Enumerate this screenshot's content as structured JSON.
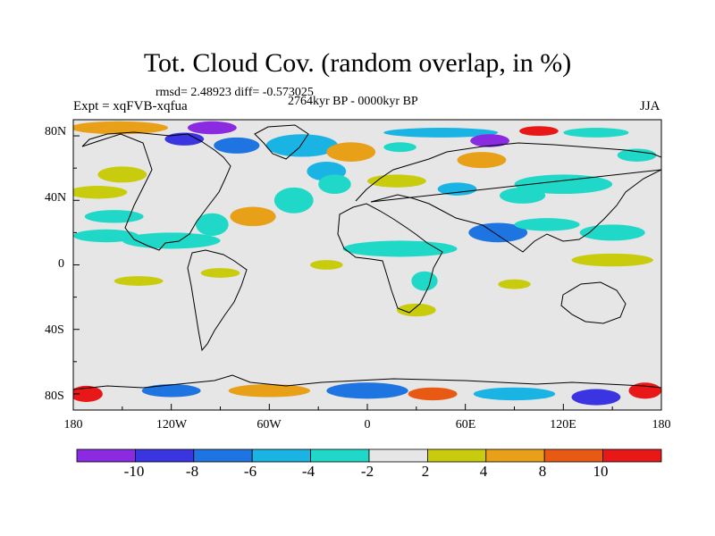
{
  "header": {
    "title": "Tot. Cloud Cov. (random overlap, in %)",
    "stats": "rmsd= 2.48923 diff= -0.573025",
    "period": "2764kyr BP - 0000kyr BP",
    "experiment": "Expt = xqFVB-xqfua",
    "season": "JJA"
  },
  "map": {
    "projection": "cylindrical-equidistant",
    "lon_range": [
      -180,
      180
    ],
    "lat_range": [
      -90,
      90
    ],
    "ocean_land_fill": "#e6e6e6",
    "coastline_color": "#000000",
    "y_ticks": [
      "80N",
      "40N",
      "0",
      "40S",
      "80S"
    ],
    "x_ticks": [
      "180",
      "120W",
      "60W",
      "0",
      "60E",
      "120E",
      "180"
    ]
  },
  "colorbar": {
    "labels": [
      "-10",
      "-8",
      "-6",
      "-4",
      "-2",
      "2",
      "4",
      "8",
      "10"
    ],
    "colors": [
      "#8a2be2",
      "#3a35e0",
      "#1e74e0",
      "#19b4e4",
      "#20d8c8",
      "#e6e6e6",
      "#c8cc0c",
      "#e8a018",
      "#e85a14",
      "#e81818"
    ]
  },
  "anomaly_blobs": [
    {
      "lon": -152,
      "lat": 85,
      "rlon": 30,
      "rlat": 4,
      "level": "pos4"
    },
    {
      "lon": -95,
      "lat": 85,
      "rlon": 15,
      "rlat": 4,
      "level": "neg10"
    },
    {
      "lon": -112,
      "lat": 78,
      "rlon": 12,
      "rlat": 4,
      "level": "neg8"
    },
    {
      "lon": -80,
      "lat": 74,
      "rlon": 14,
      "rlat": 5,
      "level": "neg6"
    },
    {
      "lon": -40,
      "lat": 74,
      "rlon": 22,
      "rlat": 7,
      "level": "neg4"
    },
    {
      "lon": -25,
      "lat": 58,
      "rlon": 12,
      "rlat": 6,
      "level": "neg4"
    },
    {
      "lon": 20,
      "lat": 73,
      "rlon": 10,
      "rlat": 3,
      "level": "neg2"
    },
    {
      "lon": 45,
      "lat": 82,
      "rlon": 35,
      "rlat": 3,
      "level": "neg4"
    },
    {
      "lon": 75,
      "lat": 77,
      "rlon": 12,
      "rlat": 4,
      "level": "neg10"
    },
    {
      "lon": 105,
      "lat": 83,
      "rlon": 12,
      "rlat": 3,
      "level": "pos10"
    },
    {
      "lon": 140,
      "lat": 82,
      "rlon": 20,
      "rlat": 3,
      "level": "neg2"
    },
    {
      "lon": 165,
      "lat": 68,
      "rlon": 12,
      "rlat": 4,
      "level": "neg2"
    },
    {
      "lon": -10,
      "lat": 70,
      "rlon": 15,
      "rlat": 6,
      "level": "pos4"
    },
    {
      "lon": 70,
      "lat": 65,
      "rlon": 15,
      "rlat": 5,
      "level": "pos4"
    },
    {
      "lon": 18,
      "lat": 52,
      "rlon": 18,
      "rlat": 4,
      "level": "pos2"
    },
    {
      "lon": 55,
      "lat": 47,
      "rlon": 12,
      "rlat": 4,
      "level": "neg4"
    },
    {
      "lon": 120,
      "lat": 50,
      "rlon": 30,
      "rlat": 6,
      "level": "neg2"
    },
    {
      "lon": 95,
      "lat": 43,
      "rlon": 14,
      "rlat": 5,
      "level": "neg2"
    },
    {
      "lon": -165,
      "lat": 45,
      "rlon": 18,
      "rlat": 4,
      "level": "pos2"
    },
    {
      "lon": -150,
      "lat": 56,
      "rlon": 15,
      "rlat": 5,
      "level": "pos2"
    },
    {
      "lon": -45,
      "lat": 40,
      "rlon": 12,
      "rlat": 8,
      "level": "neg2"
    },
    {
      "lon": -20,
      "lat": 50,
      "rlon": 10,
      "rlat": 6,
      "level": "neg2"
    },
    {
      "lon": -70,
      "lat": 30,
      "rlon": 14,
      "rlat": 6,
      "level": "pos4"
    },
    {
      "lon": -95,
      "lat": 25,
      "rlon": 10,
      "rlat": 7,
      "level": "neg2"
    },
    {
      "lon": -155,
      "lat": 30,
      "rlon": 18,
      "rlat": 4,
      "level": "neg2"
    },
    {
      "lon": -160,
      "lat": 18,
      "rlon": 20,
      "rlat": 4,
      "level": "neg2"
    },
    {
      "lon": -120,
      "lat": 15,
      "rlon": 30,
      "rlat": 5,
      "level": "neg2"
    },
    {
      "lon": 20,
      "lat": 10,
      "rlon": 35,
      "rlat": 5,
      "level": "neg2"
    },
    {
      "lon": 80,
      "lat": 20,
      "rlon": 18,
      "rlat": 6,
      "level": "neg6"
    },
    {
      "lon": 110,
      "lat": 25,
      "rlon": 20,
      "rlat": 4,
      "level": "neg2"
    },
    {
      "lon": 150,
      "lat": 20,
      "rlon": 20,
      "rlat": 5,
      "level": "neg2"
    },
    {
      "lon": -25,
      "lat": 0,
      "rlon": 10,
      "rlat": 3,
      "level": "pos2"
    },
    {
      "lon": 35,
      "lat": -10,
      "rlon": 8,
      "rlat": 6,
      "level": "neg2"
    },
    {
      "lon": 150,
      "lat": 3,
      "rlon": 25,
      "rlat": 4,
      "level": "pos2"
    },
    {
      "lon": -140,
      "lat": -10,
      "rlon": 15,
      "rlat": 3,
      "level": "pos2"
    },
    {
      "lon": -90,
      "lat": -5,
      "rlon": 12,
      "rlat": 3,
      "level": "pos2"
    },
    {
      "lon": 90,
      "lat": -12,
      "rlon": 10,
      "rlat": 3,
      "level": "pos2"
    },
    {
      "lon": 30,
      "lat": -28,
      "rlon": 12,
      "rlat": 4,
      "level": "pos2"
    },
    {
      "lon": -172,
      "lat": -80,
      "rlon": 10,
      "rlat": 5,
      "level": "pos10"
    },
    {
      "lon": -120,
      "lat": -78,
      "rlon": 18,
      "rlat": 4,
      "level": "neg6"
    },
    {
      "lon": -60,
      "lat": -78,
      "rlon": 25,
      "rlat": 4,
      "level": "pos4"
    },
    {
      "lon": 0,
      "lat": -78,
      "rlon": 25,
      "rlat": 5,
      "level": "neg6"
    },
    {
      "lon": 40,
      "lat": -80,
      "rlon": 15,
      "rlat": 4,
      "level": "pos8"
    },
    {
      "lon": 90,
      "lat": -80,
      "rlon": 25,
      "rlat": 4,
      "level": "neg4"
    },
    {
      "lon": 140,
      "lat": -82,
      "rlon": 15,
      "rlat": 5,
      "level": "neg8"
    },
    {
      "lon": 170,
      "lat": -78,
      "rlon": 10,
      "rlat": 5,
      "level": "pos10"
    }
  ]
}
